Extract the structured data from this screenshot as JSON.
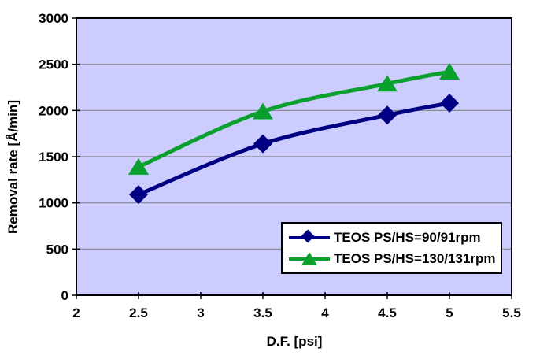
{
  "chart_data": {
    "type": "line",
    "title": "",
    "xlabel": "D.F. [psi]",
    "ylabel": "Removal rate [Å/min]",
    "x": [
      2.5,
      3.5,
      4.5,
      5
    ],
    "series": [
      {
        "name": "TEOS PS/HS=90/91rpm",
        "color": "#000082",
        "marker": "diamond",
        "values": [
          1090,
          1640,
          1950,
          2080
        ]
      },
      {
        "name": "TEOS PS/HS=130/131rpm",
        "color": "#0aa02d",
        "marker": "triangle",
        "values": [
          1390,
          1990,
          2290,
          2420
        ]
      }
    ],
    "xlim": [
      2,
      5.5
    ],
    "ylim": [
      0,
      3000
    ],
    "xticks": [
      2,
      2.5,
      3,
      3.5,
      4,
      4.5,
      5,
      5.5
    ],
    "yticks": [
      0,
      500,
      1000,
      1500,
      2000,
      2500,
      3000
    ],
    "grid": true,
    "legend_position": "inside-bottom-right",
    "colors": {
      "plot_background": "#ccccff",
      "gridline": "#848484",
      "axis_line": "#000000",
      "text": "#000000",
      "legend_background": "#ffffff",
      "legend_border": "#000000"
    }
  }
}
